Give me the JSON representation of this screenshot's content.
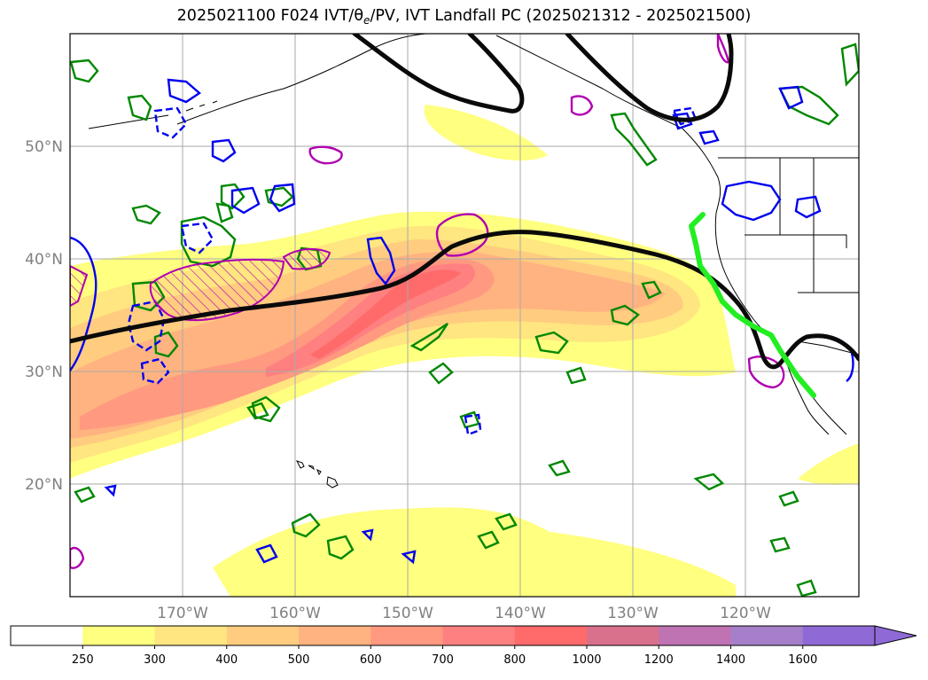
{
  "title": {
    "prefix": "2025021100 F024 IVT/",
    "theta_symbol": "θ",
    "theta_sub": "e",
    "suffix": "/PV, IVT Landfall PC (2025021312 - 2025021500)"
  },
  "map": {
    "projection": "PlateCarree",
    "lon_range": [
      -180,
      -110
    ],
    "lat_range": [
      10,
      60
    ],
    "lat_labels": [
      "50°N",
      "40°N",
      "30°N",
      "20°N"
    ],
    "lon_labels": [
      "170°W",
      "160°W",
      "150°W",
      "140°W",
      "130°W",
      "120°W"
    ],
    "gridlines": true,
    "colors": {
      "ivt_fill": [
        "#ffff80",
        "#ffe680",
        "#ffcc80",
        "#ffb380",
        "#ff9980",
        "#ff8080",
        "#ff6b6b",
        "#d9708c",
        "#bf73b3",
        "#a57fc9"
      ],
      "theta_e_contour": "#0a0a0a",
      "landfall_line": "#22ee22",
      "pv_positive": "#0000ee",
      "pv_negative": "#008800",
      "pv_hatch": "#b000b0"
    }
  },
  "colorbar": {
    "ticks": [
      "250",
      "300",
      "400",
      "500",
      "600",
      "700",
      "800",
      "1000",
      "1200",
      "1400",
      "1600"
    ],
    "colors": [
      "#ffffff",
      "#ffff80",
      "#ffe680",
      "#ffcc80",
      "#ffb380",
      "#ff9980",
      "#ff8080",
      "#ff6b6b",
      "#d9708c",
      "#bf73b3",
      "#a57fc9",
      "#8f6ad6"
    ],
    "extend": "max"
  }
}
